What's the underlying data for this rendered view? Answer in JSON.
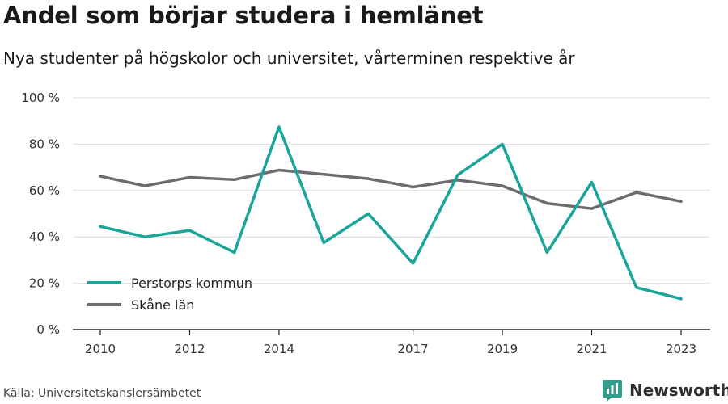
{
  "title": "Andel som börjar studera i hemlänet",
  "subtitle": "Nya studenter på högskolor och universitet, vårterminen respektive år",
  "source": "Källa: Universitetskanslersämbetet",
  "brand": {
    "name": "Newsworthy",
    "icon": "newsworthy-logo-icon",
    "color": "#2f9e8f"
  },
  "chart_data": {
    "type": "line",
    "x": [
      2010,
      2011,
      2012,
      2013,
      2014,
      2015,
      2016,
      2017,
      2018,
      2019,
      2020,
      2021,
      2022,
      2023
    ],
    "x_ticks": [
      2010,
      2012,
      2014,
      2017,
      2019,
      2021,
      2023
    ],
    "ylim": [
      0,
      100
    ],
    "y_ticks": [
      0,
      20,
      40,
      60,
      80,
      100
    ],
    "y_tick_labels": [
      "0 %",
      "20 %",
      "40 %",
      "60 %",
      "80 %",
      "100 %"
    ],
    "grid": true,
    "legend_position": "bottom-left",
    "series": [
      {
        "name": "Perstorps kommun",
        "color": "#1aa59a",
        "values": [
          44.5,
          40,
          42.8,
          33.3,
          87.5,
          37.5,
          50,
          28.6,
          66.7,
          80,
          33.3,
          63.6,
          18.2,
          13.3
        ]
      },
      {
        "name": "Skåne län",
        "color": "#6d6a70",
        "values": [
          66.2,
          62,
          65.7,
          64.7,
          68.8,
          67,
          65.1,
          61.5,
          64.5,
          62,
          54.5,
          52.2,
          59.2,
          55.3
        ]
      }
    ]
  }
}
